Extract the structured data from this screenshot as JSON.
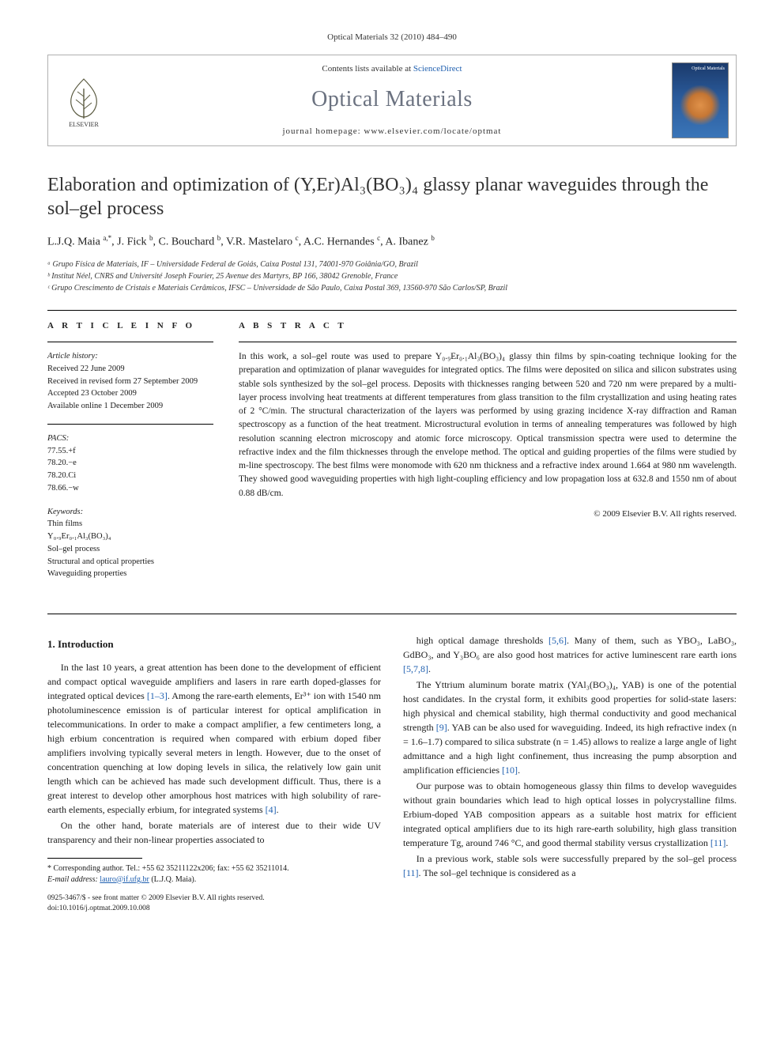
{
  "citation": "Optical Materials 32 (2010) 484–490",
  "header": {
    "contents_prefix": "Contents lists available at ",
    "contents_link": "ScienceDirect",
    "journal": "Optical Materials",
    "homepage_label": "journal homepage: www.elsevier.com/locate/optmat",
    "cover_label": "Optical Materials"
  },
  "title": "Elaboration and optimization of (Y,Er)Al₃(BO₃)₄ glassy planar waveguides through the sol–gel process",
  "authors_html": "L.J.Q. Maia <sup>a,*</sup>, J. Fick <sup>b</sup>, C. Bouchard <sup>b</sup>, V.R. Mastelaro <sup>c</sup>, A.C. Hernandes <sup>c</sup>, A. Ibanez <sup>b</sup>",
  "affiliations": [
    "ᵃ Grupo Física de Materiais, IF – Universidade Federal de Goiás, Caixa Postal 131, 74001-970 Goiânia/GO, Brazil",
    "ᵇ Institut Néel, CNRS and Université Joseph Fourier, 25 Avenue des Martyrs, BP 166, 38042 Grenoble, France",
    "ᶜ Grupo Crescimento de Cristais e Materiais Cerâmicos, IFSC – Universidade de São Paulo, Caixa Postal 369, 13560-970 São Carlos/SP, Brazil"
  ],
  "article_info": {
    "heading": "A R T I C L E   I N F O",
    "history_label": "Article history:",
    "history": [
      "Received 22 June 2009",
      "Received in revised form 27 September 2009",
      "Accepted 23 October 2009",
      "Available online 1 December 2009"
    ],
    "pacs_label": "PACS:",
    "pacs": [
      "77.55.+f",
      "78.20.−e",
      "78.20.Ci",
      "78.66.−w"
    ],
    "keywords_label": "Keywords:",
    "keywords": [
      "Thin films",
      "Y₀.₉Er₀.₁Al₃(BO₃)₄",
      "Sol–gel process",
      "Structural and optical properties",
      "Waveguiding properties"
    ]
  },
  "abstract": {
    "heading": "A B S T R A C T",
    "text": "In this work, a sol–gel route was used to prepare Y₀.₉Er₀.₁Al₃(BO₃)₄ glassy thin films by spin-coating technique looking for the preparation and optimization of planar waveguides for integrated optics. The films were deposited on silica and silicon substrates using stable sols synthesized by the sol–gel process. Deposits with thicknesses ranging between 520 and 720 nm were prepared by a multi-layer process involving heat treatments at different temperatures from glass transition to the film crystallization and using heating rates of 2 °C/min. The structural characterization of the layers was performed by using grazing incidence X-ray diffraction and Raman spectroscopy as a function of the heat treatment. Microstructural evolution in terms of annealing temperatures was followed by high resolution scanning electron microscopy and atomic force microscopy. Optical transmission spectra were used to determine the refractive index and the film thicknesses through the envelope method. The optical and guiding properties of the films were studied by m-line spectroscopy. The best films were monomode with 620 nm thickness and a refractive index around 1.664 at 980 nm wavelength. They showed good waveguiding properties with high light-coupling efficiency and low propagation loss at 632.8 and 1550 nm of about 0.88 dB/cm.",
    "copyright": "© 2009 Elsevier B.V. All rights reserved."
  },
  "section1": {
    "heading": "1. Introduction",
    "p1": "In the last 10 years, a great attention has been done to the development of efficient and compact optical waveguide amplifiers and lasers in rare earth doped-glasses for integrated optical devices [1–3]. Among the rare-earth elements, Er³⁺ ion with 1540 nm photoluminescence emission is of particular interest for optical amplification in telecommunications. In order to make a compact amplifier, a few centimeters long, a high erbium concentration is required when compared with erbium doped fiber amplifiers involving typically several meters in length. However, due to the onset of concentration quenching at low doping levels in silica, the relatively low gain unit length which can be achieved has made such development difficult. Thus, there is a great interest to develop other amorphous host matrices with high solubility of rare-earth elements, especially erbium, for integrated systems [4].",
    "p2": "On the other hand, borate materials are of interest due to their wide UV transparency and their non-linear properties associated to",
    "p3": "high optical damage thresholds [5,6]. Many of them, such as YBO₃, LaBO₃, GdBO₃, and Y₃BO₆ are also good host matrices for active luminescent rare earth ions [5,7,8].",
    "p4": "The Yttrium aluminum borate matrix (YAl₃(BO₃)₄, YAB) is one of the potential host candidates. In the crystal form, it exhibits good properties for solid-state lasers: high physical and chemical stability, high thermal conductivity and good mechanical strength [9]. YAB can be also used for waveguiding. Indeed, its high refractive index (n = 1.6–1.7) compared to silica substrate (n = 1.45) allows to realize a large angle of light admittance and a high light confinement, thus increasing the pump absorption and amplification efficiencies [10].",
    "p5": "Our purpose was to obtain homogeneous glassy thin films to develop waveguides without grain boundaries which lead to high optical losses in polycrystalline films. Erbium-doped YAB composition appears as a suitable host matrix for efficient integrated optical amplifiers due to its high rare-earth solubility, high glass transition temperature Tg, around 746 °C, and good thermal stability versus crystallization [11].",
    "p6": "In a previous work, stable sols were successfully prepared by the sol–gel process [11]. The sol–gel technique is considered as a"
  },
  "footnote": {
    "corr": "* Corresponding author. Tel.: +55 62 35211122x206; fax: +55 62 35211014.",
    "email_label": "E-mail address:",
    "email": "lauro@if.ufg.br",
    "email_who": "(L.J.Q. Maia)."
  },
  "bottom": {
    "left1": "0925-3467/$ - see front matter © 2009 Elsevier B.V. All rights reserved.",
    "left2": "doi:10.1016/j.optmat.2009.10.008"
  },
  "colors": {
    "link": "#2060b0",
    "journal_gray": "#6b7280",
    "rule": "#000000",
    "box_border": "#b0b0b0"
  }
}
